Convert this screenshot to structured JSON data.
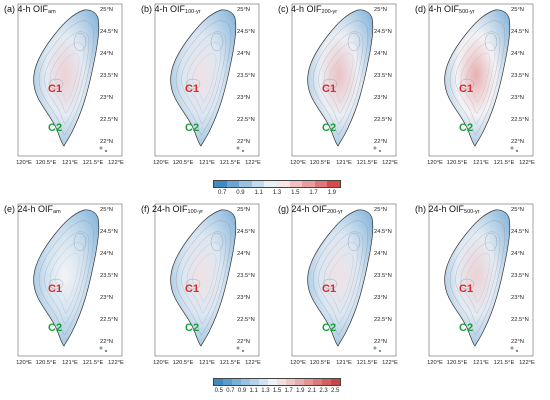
{
  "colors": {
    "region_c1": "#e02828",
    "region_c2": "#1a9e3a",
    "colorbar_top": [
      "#3f8ac2",
      "#6aa6d2",
      "#97c2e2",
      "#c2dbef",
      "#e6eef6",
      "#f6e6e6",
      "#f0c2c2",
      "#ea9d9d",
      "#e27575",
      "#d84b4b"
    ],
    "colorbar_bottom": [
      "#3f8ac2",
      "#5a9dcc",
      "#78b0d7",
      "#97c2e2",
      "#b3d3eb",
      "#d0e3f2",
      "#eef2f7",
      "#f4dede",
      "#efc6c6",
      "#eaadad",
      "#e39494",
      "#dc7a7a",
      "#d45f5f",
      "#cc4545"
    ]
  },
  "axes": {
    "lat_labels": [
      "25°N",
      "24.5°N",
      "24°N",
      "23.5°N",
      "23°N",
      "22.5°N",
      "22°N"
    ],
    "lon_labels": [
      "120°E",
      "120.5°E",
      "121°E",
      "121.5°E",
      "122°E"
    ]
  },
  "colorbars": [
    {
      "ticks": [
        "0.7",
        "0.9",
        "1.1",
        "1.3",
        "1.5",
        "1.7",
        "1.9"
      ]
    },
    {
      "ticks": [
        "0.5",
        "0.7",
        "0.9",
        "1.1",
        "1.3",
        "1.5",
        "1.7",
        "1.9",
        "2.1",
        "2.3",
        "2.5"
      ]
    }
  ],
  "panels": [
    {
      "letter": "(a)",
      "duration": "4-h",
      "index": "OIF",
      "sub": "am",
      "region1": "C1",
      "region2": "C2",
      "level_c1": 1.7,
      "level_c2": 1.2
    },
    {
      "letter": "(b)",
      "duration": "4-h",
      "index": "OIF",
      "sub": "100-yr",
      "region1": "C1",
      "region2": "C2",
      "level_c1": 1.6,
      "level_c2": 1.4
    },
    {
      "letter": "(c)",
      "duration": "4-h",
      "index": "OIF",
      "sub": "200-yr",
      "region1": "C1",
      "region2": "C2",
      "level_c1": 1.8,
      "level_c2": 1.3
    },
    {
      "letter": "(d)",
      "duration": "4-h",
      "index": "OIF",
      "sub": "500-yr",
      "region1": "C1",
      "region2": "C2",
      "level_c1": 1.9,
      "level_c2": 1.3
    },
    {
      "letter": "(e)",
      "duration": "24-h",
      "index": "OIF",
      "sub": "am",
      "region1": "C1",
      "region2": "C2",
      "level_c1": 1.5,
      "level_c2": 1.1
    },
    {
      "letter": "(f)",
      "duration": "24-h",
      "index": "OIF",
      "sub": "100-yr",
      "region1": "C1",
      "region2": "C2",
      "level_c1": 1.6,
      "level_c2": 1.1
    },
    {
      "letter": "(g)",
      "duration": "24-h",
      "index": "OIF",
      "sub": "200-yr",
      "region1": "C1",
      "region2": "C2",
      "level_c1": 1.6,
      "level_c2": 1.0
    },
    {
      "letter": "(h)",
      "duration": "24-h",
      "index": "OIF",
      "sub": "500-yr",
      "region1": "C1",
      "region2": "C2",
      "level_c1": 1.7,
      "level_c2": 0.9
    }
  ]
}
